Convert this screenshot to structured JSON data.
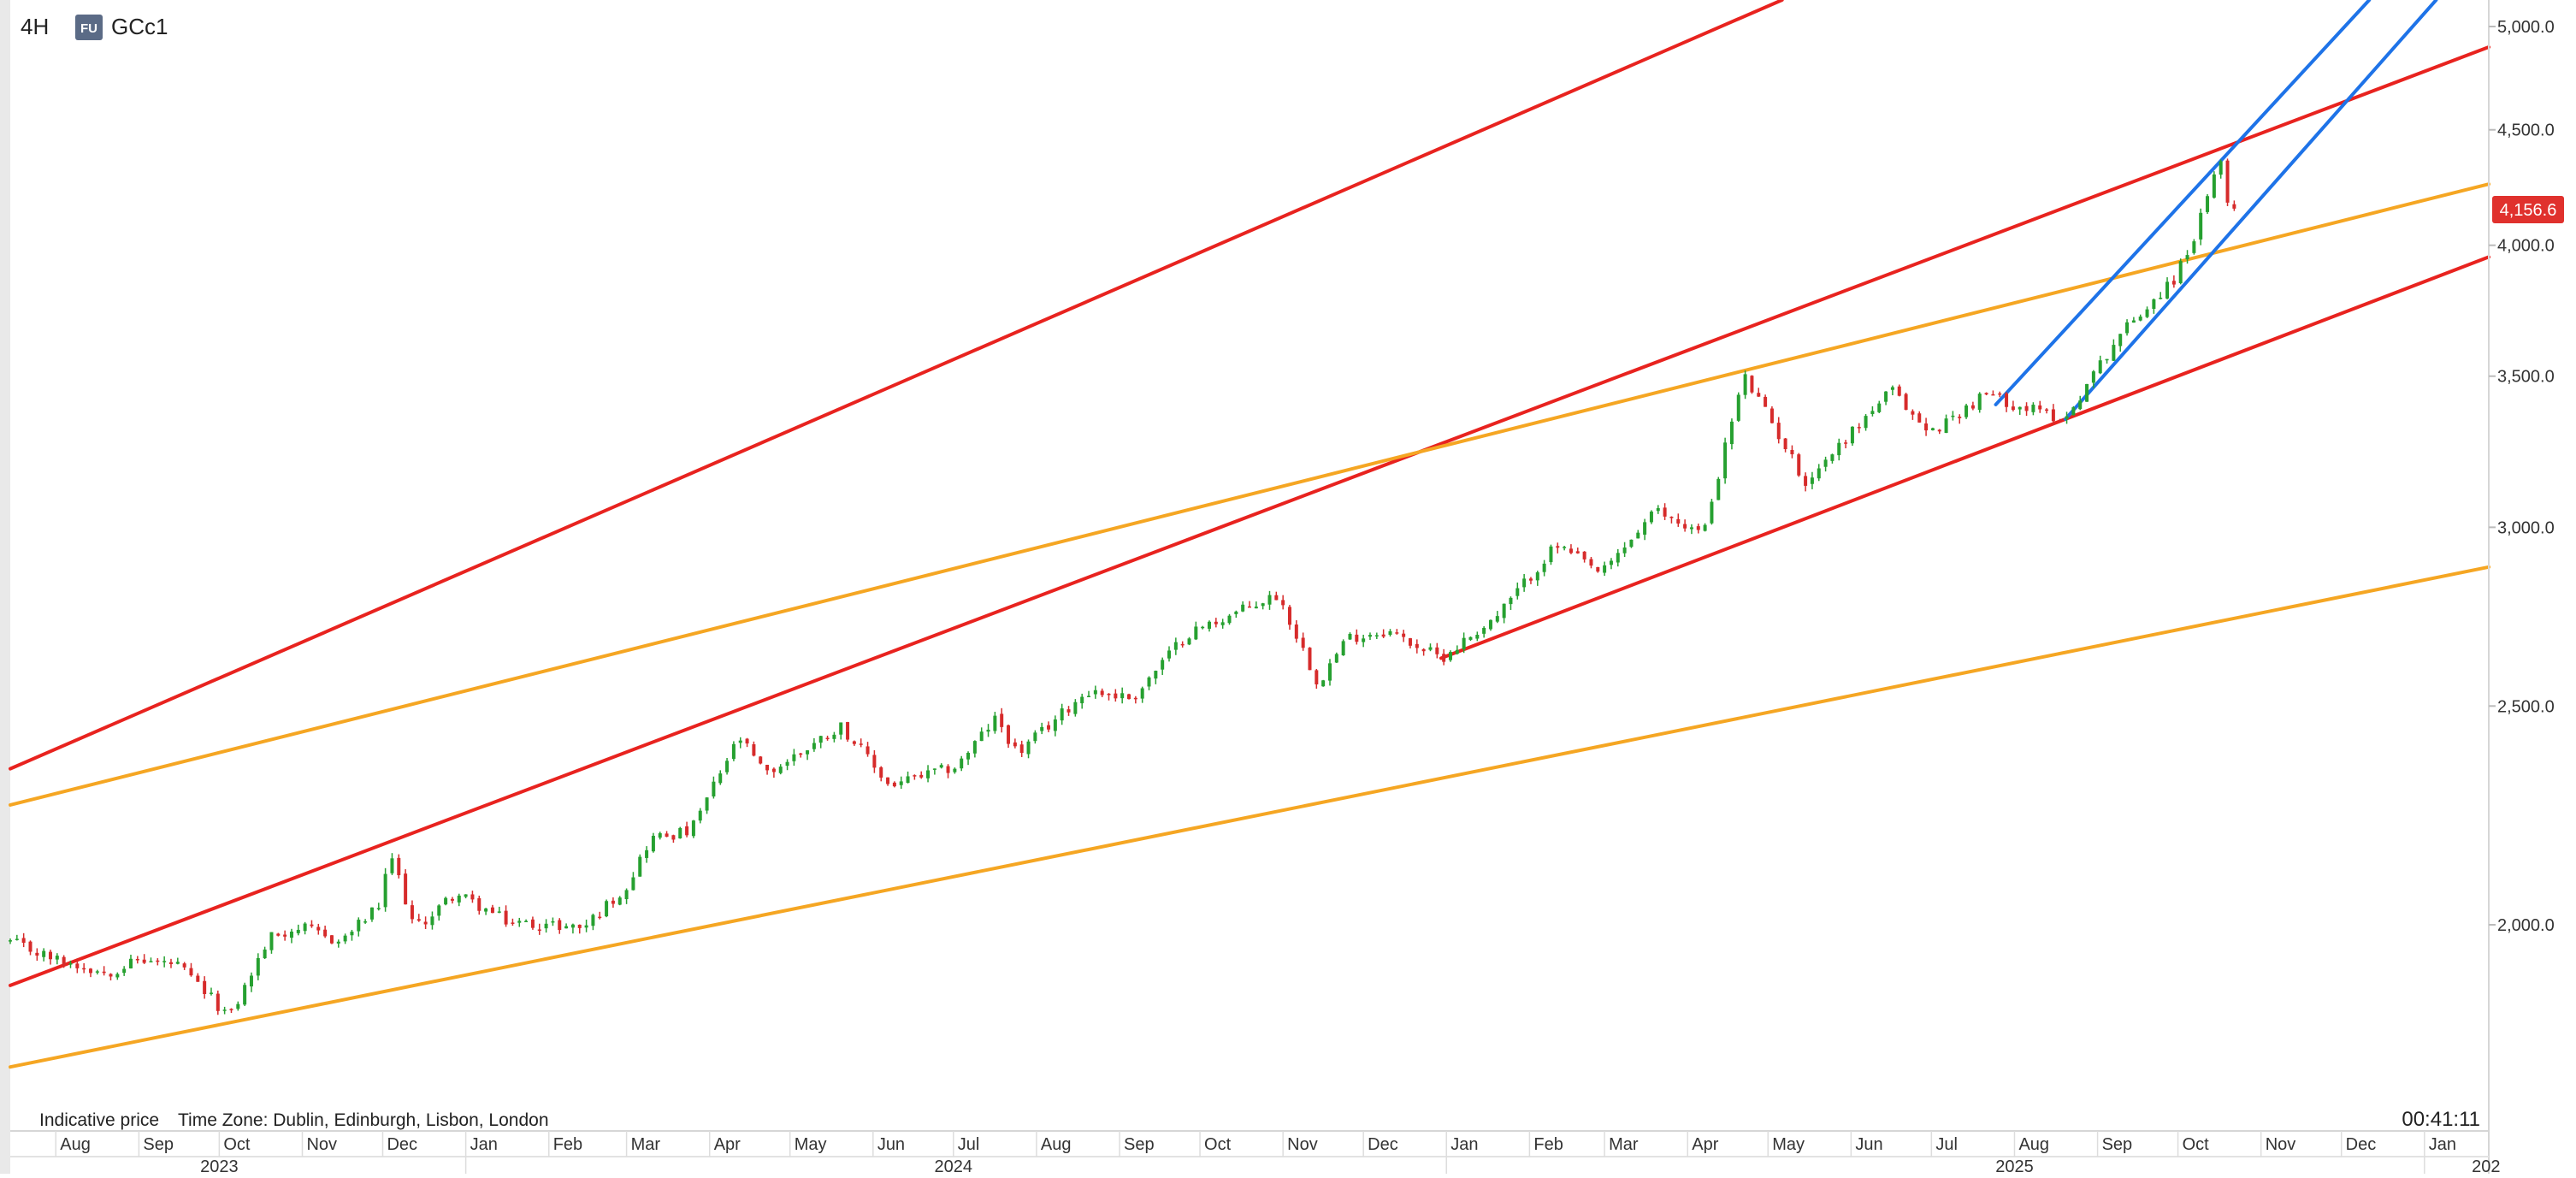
{
  "header": {
    "timeframe": "4H",
    "instrument_badge": "FU",
    "symbol": "GCc1"
  },
  "footer": {
    "indicative": "Indicative price",
    "timezone": "Time Zone: Dublin, Edinburgh, Lisbon, London",
    "countdown": "00:41:11"
  },
  "colors": {
    "up": "#26a030",
    "down": "#d62b2b",
    "red_line": "#e8231f",
    "orange_line": "#f5a623",
    "blue_line": "#1e73e8",
    "price_label_bg": "#e0312d",
    "badge_bg": "#5b6b86"
  },
  "chart_data": {
    "type": "candlestick",
    "y_scale": "log",
    "ylim": [
      1700,
      5200
    ],
    "xlim": [
      "2023-07-15",
      "2026-01-25"
    ],
    "y_ticks": [
      {
        "value": 2000,
        "label": "2,000.0"
      },
      {
        "value": 2500,
        "label": "2,500.0"
      },
      {
        "value": 3000,
        "label": "3,000.0"
      },
      {
        "value": 3500,
        "label": "3,500.0"
      },
      {
        "value": 4000,
        "label": "4,000.0"
      },
      {
        "value": 4500,
        "label": "4,500.0"
      },
      {
        "value": 5000,
        "label": "5,000.0"
      }
    ],
    "current_price": {
      "value": 4156.6,
      "label": "4,156.6"
    },
    "month_ticks": [
      {
        "date": "2023-08-01",
        "label": "Aug"
      },
      {
        "date": "2023-09-01",
        "label": "Sep"
      },
      {
        "date": "2023-10-01",
        "label": "Oct"
      },
      {
        "date": "2023-11-01",
        "label": "Nov"
      },
      {
        "date": "2023-12-01",
        "label": "Dec"
      },
      {
        "date": "2024-01-01",
        "label": "Jan"
      },
      {
        "date": "2024-02-01",
        "label": "Feb"
      },
      {
        "date": "2024-03-01",
        "label": "Mar"
      },
      {
        "date": "2024-04-01",
        "label": "Apr"
      },
      {
        "date": "2024-05-01",
        "label": "May"
      },
      {
        "date": "2024-06-01",
        "label": "Jun"
      },
      {
        "date": "2024-07-01",
        "label": "Jul"
      },
      {
        "date": "2024-08-01",
        "label": "Aug"
      },
      {
        "date": "2024-09-01",
        "label": "Sep"
      },
      {
        "date": "2024-10-01",
        "label": "Oct"
      },
      {
        "date": "2024-11-01",
        "label": "Nov"
      },
      {
        "date": "2024-12-01",
        "label": "Dec"
      },
      {
        "date": "2025-01-01",
        "label": "Jan"
      },
      {
        "date": "2025-02-01",
        "label": "Feb"
      },
      {
        "date": "2025-03-01",
        "label": "Mar"
      },
      {
        "date": "2025-04-01",
        "label": "Apr"
      },
      {
        "date": "2025-05-01",
        "label": "May"
      },
      {
        "date": "2025-06-01",
        "label": "Jun"
      },
      {
        "date": "2025-07-01",
        "label": "Jul"
      },
      {
        "date": "2025-08-01",
        "label": "Aug"
      },
      {
        "date": "2025-09-01",
        "label": "Sep"
      },
      {
        "date": "2025-10-01",
        "label": "Oct"
      },
      {
        "date": "2025-11-01",
        "label": "Nov"
      },
      {
        "date": "2025-12-01",
        "label": "Dec"
      },
      {
        "date": "2026-01-01",
        "label": "Jan"
      }
    ],
    "year_ticks": [
      {
        "date": "2023-10-01",
        "label": "2023"
      },
      {
        "date": "2024-07-01",
        "label": "2024"
      },
      {
        "date": "2025-08-01",
        "label": "2025"
      },
      {
        "date": "2026-01-24",
        "label": "202"
      }
    ],
    "year_dividers": [
      "2024-01-01",
      "2025-01-01",
      "2026-01-01"
    ],
    "price_path": [
      [
        "2023-07-15",
        1965
      ],
      [
        "2023-08-01",
        1930
      ],
      [
        "2023-08-20",
        1905
      ],
      [
        "2023-09-01",
        1930
      ],
      [
        "2023-09-15",
        1920
      ],
      [
        "2023-10-05",
        1820
      ],
      [
        "2023-10-20",
        1975
      ],
      [
        "2023-10-31",
        1995
      ],
      [
        "2023-11-15",
        1965
      ],
      [
        "2023-11-30",
        2040
      ],
      [
        "2023-12-04",
        2150
      ],
      [
        "2023-12-13",
        1990
      ],
      [
        "2023-12-28",
        2065
      ],
      [
        "2024-01-17",
        2005
      ],
      [
        "2024-02-14",
        1995
      ],
      [
        "2024-03-01",
        2080
      ],
      [
        "2024-03-10",
        2185
      ],
      [
        "2024-03-25",
        2200
      ],
      [
        "2024-04-12",
        2420
      ],
      [
        "2024-04-22",
        2330
      ],
      [
        "2024-05-20",
        2450
      ],
      [
        "2024-06-07",
        2305
      ],
      [
        "2024-07-02",
        2350
      ],
      [
        "2024-07-17",
        2470
      ],
      [
        "2024-07-25",
        2380
      ],
      [
        "2024-08-20",
        2540
      ],
      [
        "2024-09-06",
        2520
      ],
      [
        "2024-09-26",
        2690
      ],
      [
        "2024-10-30",
        2800
      ],
      [
        "2024-11-14",
        2560
      ],
      [
        "2024-11-25",
        2680
      ],
      [
        "2024-12-10",
        2700
      ],
      [
        "2024-12-30",
        2625
      ],
      [
        "2025-01-20",
        2740
      ],
      [
        "2025-02-11",
        2945
      ],
      [
        "2025-02-28",
        2860
      ],
      [
        "2025-03-20",
        3050
      ],
      [
        "2025-04-07",
        2980
      ],
      [
        "2025-04-22",
        3500
      ],
      [
        "2025-05-15",
        3140
      ],
      [
        "2025-06-16",
        3450
      ],
      [
        "2025-06-30",
        3300
      ],
      [
        "2025-07-22",
        3440
      ],
      [
        "2025-08-01",
        3400
      ],
      [
        "2025-08-20",
        3350
      ],
      [
        "2025-09-09",
        3650
      ],
      [
        "2025-09-30",
        3870
      ],
      [
        "2025-10-08",
        4060
      ],
      [
        "2025-10-17",
        4360
      ],
      [
        "2025-10-21",
        4100
      ],
      [
        "2025-10-22",
        4156.6
      ]
    ],
    "trendlines": [
      {
        "color": "red",
        "points": [
          [
            "2023-07-15",
            2345
          ],
          [
            "2025-05-10",
            5160
          ]
        ]
      },
      {
        "color": "red",
        "points": [
          [
            "2023-07-15",
            1880
          ],
          [
            "2024-12-22",
            3240
          ]
        ]
      },
      {
        "color": "red",
        "points": [
          [
            "2024-12-30",
            2625
          ],
          [
            "2025-08-20",
            3350
          ]
        ]
      },
      {
        "color": "orange",
        "points": [
          [
            "2023-07-15",
            2260
          ],
          [
            "2025-04-18",
            3510
          ]
        ]
      },
      {
        "color": "orange",
        "points": [
          [
            "2023-07-15",
            1730
          ],
          [
            "2023-10-05",
            1810
          ]
        ]
      },
      {
        "color": "blue",
        "points": [
          [
            "2025-07-25",
            3400
          ],
          [
            "2025-10-17",
            4360
          ]
        ]
      },
      {
        "color": "blue",
        "points": [
          [
            "2025-08-20",
            3350
          ],
          [
            "2025-10-22",
            4070
          ]
        ]
      }
    ]
  }
}
